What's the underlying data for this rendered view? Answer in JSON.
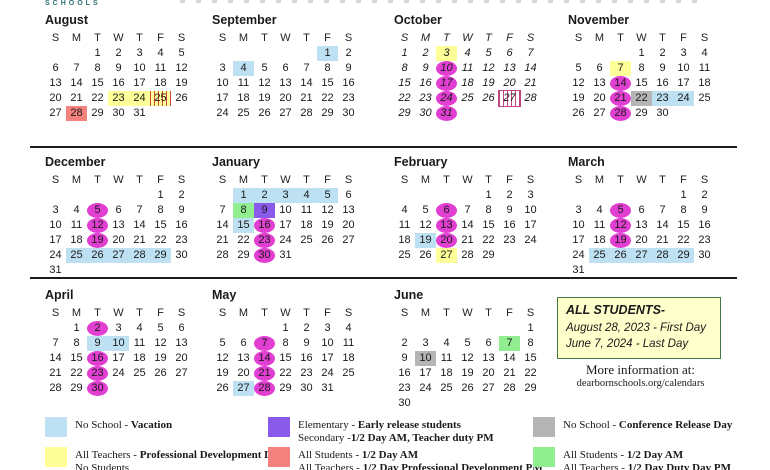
{
  "header": {
    "logo_text": "SCHOOLS"
  },
  "colors": {
    "blue": "#BDE0F2",
    "yellow": "#FFFF99",
    "magenta": "#E13ED2",
    "red": "#F4817D",
    "purple": "#8A5BEA",
    "green": "#90EE90",
    "gray": "#B5B5B5",
    "stripered": "#CC4444",
    "stripepink": "#C4447F",
    "notebg": "#FFFFCC",
    "noteborder": "#447744",
    "teal": "#2E6F71"
  },
  "weekday_headers": [
    "S",
    "M",
    "T",
    "W",
    "T",
    "F",
    "S"
  ],
  "months": [
    {
      "name": "August",
      "first_dow": 2,
      "days": 31,
      "italic": false,
      "highlights": {
        "23": "yellow",
        "24": "yellow",
        "25": "stripe-yellow",
        "28": "red"
      }
    },
    {
      "name": "September",
      "first_dow": 5,
      "days": 30,
      "italic": false,
      "highlights": {
        "1": "blue",
        "4": "blue"
      }
    },
    {
      "name": "October",
      "first_dow": 0,
      "days": 31,
      "italic": true,
      "highlights": {
        "3": "yellow",
        "10": "magenta",
        "17": "magenta",
        "24": "magenta",
        "27": "stripe-pink",
        "31": "magenta"
      }
    },
    {
      "name": "November",
      "first_dow": 3,
      "days": 30,
      "italic": false,
      "highlights": {
        "7": "yellow",
        "14": "magenta",
        "21": "magenta",
        "22": "gray",
        "23": "blue",
        "24": "blue",
        "28": "magenta"
      }
    },
    {
      "name": "December",
      "first_dow": 5,
      "days": 31,
      "italic": false,
      "highlights": {
        "5": "magenta",
        "12": "magenta",
        "19": "magenta",
        "25": "blue",
        "26": "blue",
        "27": "blue",
        "28": "blue",
        "29": "blue"
      }
    },
    {
      "name": "January",
      "first_dow": 1,
      "days": 31,
      "italic": false,
      "highlights": {
        "1": "blue",
        "2": "blue",
        "3": "blue",
        "4": "blue",
        "5": "blue",
        "8": "green",
        "9": "purple",
        "15": "blue",
        "16": "magenta",
        "23": "magenta",
        "30": "magenta"
      }
    },
    {
      "name": "February",
      "first_dow": 4,
      "days": 29,
      "italic": false,
      "highlights": {
        "6": "magenta",
        "13": "magenta",
        "19": "blue",
        "20": "magenta",
        "27": "yellow"
      }
    },
    {
      "name": "March",
      "first_dow": 5,
      "days": 31,
      "italic": false,
      "highlights": {
        "5": "magenta",
        "12": "magenta",
        "19": "magenta",
        "25": "blue",
        "26": "blue",
        "27": "blue",
        "28": "blue",
        "29": "blue"
      }
    },
    {
      "name": "April",
      "first_dow": 1,
      "days": 30,
      "italic": false,
      "highlights": {
        "2": "magenta",
        "9": "blue",
        "10": "blue",
        "16": "magenta",
        "23": "magenta",
        "30": "magenta"
      }
    },
    {
      "name": "May",
      "first_dow": 3,
      "days": 31,
      "italic": false,
      "highlights": {
        "7": "magenta",
        "14": "magenta",
        "21": "magenta",
        "27": "blue",
        "28": "magenta"
      }
    },
    {
      "name": "June",
      "first_dow": 6,
      "days": 30,
      "italic": false,
      "highlights": {
        "7": "green",
        "10": "gray"
      }
    }
  ],
  "note_box": {
    "title": "ALL STUDENTS-",
    "line1": "August 28, 2023 - First Day",
    "line2": "June 7, 2024 - Last Day"
  },
  "more_info": {
    "line1": "More information at:",
    "line2": "dearbornschools.org/calendars"
  },
  "legend": [
    {
      "color": "blue",
      "lines": [
        [
          {
            "t": "No School - "
          },
          {
            "t": "Vacation",
            "b": true
          }
        ]
      ]
    },
    {
      "color": "yellow",
      "lines": [
        [
          {
            "t": "All Teachers - "
          },
          {
            "t": "Professional Development Day",
            "b": true
          }
        ],
        [
          {
            "t": "No Students"
          }
        ]
      ]
    },
    {
      "color": "purple",
      "lines": [
        [
          {
            "t": "Elementary - "
          },
          {
            "t": "Early release students",
            "b": true
          }
        ],
        [
          {
            "t": "Secondary -"
          },
          {
            "t": "1/2 Day AM, Teacher duty PM",
            "b": true
          }
        ]
      ]
    },
    {
      "color": "red",
      "lines": [
        [
          {
            "t": "All Students - "
          },
          {
            "t": "1/2 Day AM",
            "b": true
          }
        ],
        [
          {
            "t": "All Teachers - "
          },
          {
            "t": "1/2 Day Professional Development PM",
            "b": true
          }
        ]
      ]
    },
    {
      "color": "gray",
      "lines": [
        [
          {
            "t": "No School - "
          },
          {
            "t": "Conference Release Day",
            "b": true
          }
        ]
      ]
    },
    {
      "color": "green",
      "lines": [
        [
          {
            "t": "All Students -  "
          },
          {
            "t": "1/2 Day AM",
            "b": true
          }
        ],
        [
          {
            "t": "All Teachers - "
          },
          {
            "t": "1/2 Day Duty Day PM",
            "b": true
          }
        ]
      ]
    }
  ]
}
